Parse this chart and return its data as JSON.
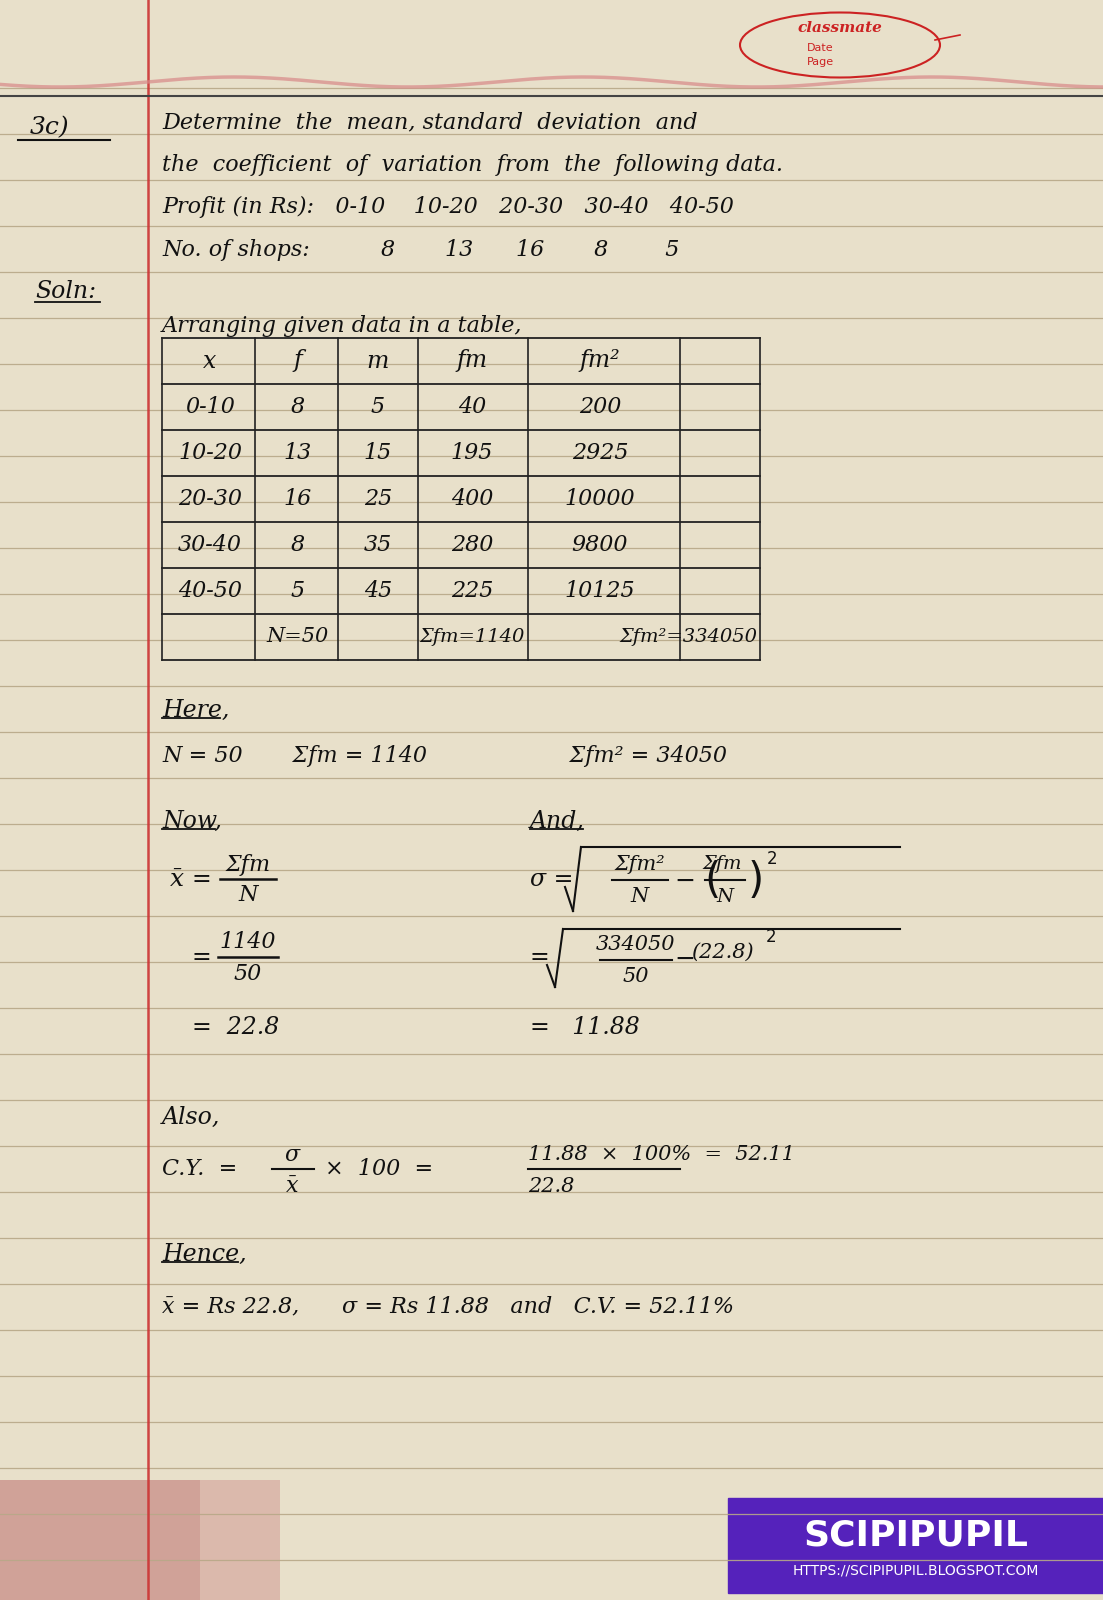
{
  "bg_color": "#e8e0d0",
  "page_bg": "#e8dfc8",
  "classmate_text": "classmate",
  "table_rows": [
    [
      "0-10",
      "8",
      "5",
      "40",
      "200"
    ],
    [
      "10-20",
      "13",
      "15",
      "195",
      "2925"
    ],
    [
      "20-30",
      "16",
      "25",
      "400",
      "10000"
    ],
    [
      "30-40",
      "8",
      "35",
      "280",
      "9800"
    ],
    [
      "40-50",
      "5",
      "45",
      "225",
      "10125"
    ]
  ],
  "watermark_text": "SCIPIPUPIL",
  "watermark_url": "HTTPS://SCIPIPUPIL.BLOGSPOT.COM"
}
